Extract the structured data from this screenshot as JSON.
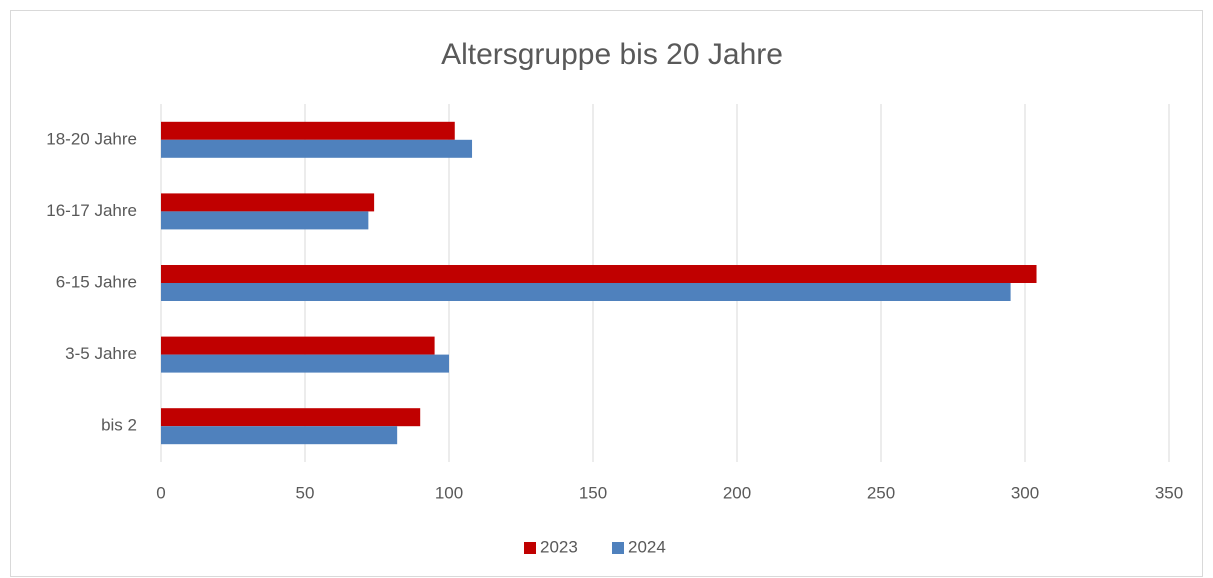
{
  "chart_data": {
    "type": "hbar",
    "title": "Altersgruppe bis 20 Jahre",
    "categories": [
      "bis 2",
      "3-5 Jahre",
      "6-15 Jahre",
      "16-17 Jahre",
      "18-20 Jahre"
    ],
    "series": [
      {
        "name": "2023",
        "color": "#c00000",
        "values": [
          90,
          95,
          304,
          74,
          102
        ]
      },
      {
        "name": "2024",
        "color": "#4f81bd",
        "values": [
          82,
          100,
          295,
          72,
          108
        ]
      }
    ],
    "xlim": [
      0,
      350
    ],
    "xticks": [
      0,
      50,
      100,
      150,
      200,
      250,
      300,
      350
    ],
    "grid": true,
    "legend": "bottom"
  }
}
